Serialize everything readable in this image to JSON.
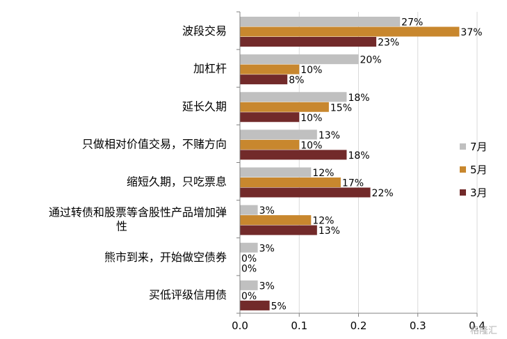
{
  "chart_data": {
    "type": "bar",
    "orientation": "horizontal",
    "categories": [
      "波段交易",
      "加杠杆",
      "延长久期",
      "只做相对价值交易，不赌方向",
      "缩短久期，只吃票息",
      "通过转债和股票等含股性产品增加弹\n性",
      "熊市到来，开始做空债券",
      "买低评级信用债"
    ],
    "series": [
      {
        "name": "7月",
        "color": "#C0C0C0",
        "values": [
          0.27,
          0.2,
          0.18,
          0.13,
          0.12,
          0.03,
          0.03,
          0.03
        ],
        "labels": [
          "27%",
          "20%",
          "18%",
          "13%",
          "12%",
          "3%",
          "3%",
          "3%"
        ]
      },
      {
        "name": "5月",
        "color": "#C8872E",
        "values": [
          0.37,
          0.1,
          0.15,
          0.1,
          0.17,
          0.12,
          0.0,
          0.0
        ],
        "labels": [
          "37%",
          "10%",
          "15%",
          "10%",
          "17%",
          "12%",
          "0%",
          "0%"
        ]
      },
      {
        "name": "3月",
        "color": "#722A2A",
        "values": [
          0.23,
          0.08,
          0.1,
          0.18,
          0.22,
          0.13,
          0.0,
          0.05
        ],
        "labels": [
          "23%",
          "8%",
          "10%",
          "18%",
          "22%",
          "13%",
          "0%",
          "5%"
        ]
      }
    ],
    "xlim": [
      0.0,
      0.4
    ],
    "xticks": [
      "0.0",
      "0.1",
      "0.2",
      "0.3",
      "0.4"
    ],
    "grid": true,
    "legend": "right",
    "title": "",
    "xlabel": "",
    "ylabel": ""
  },
  "watermark": "格隆汇"
}
